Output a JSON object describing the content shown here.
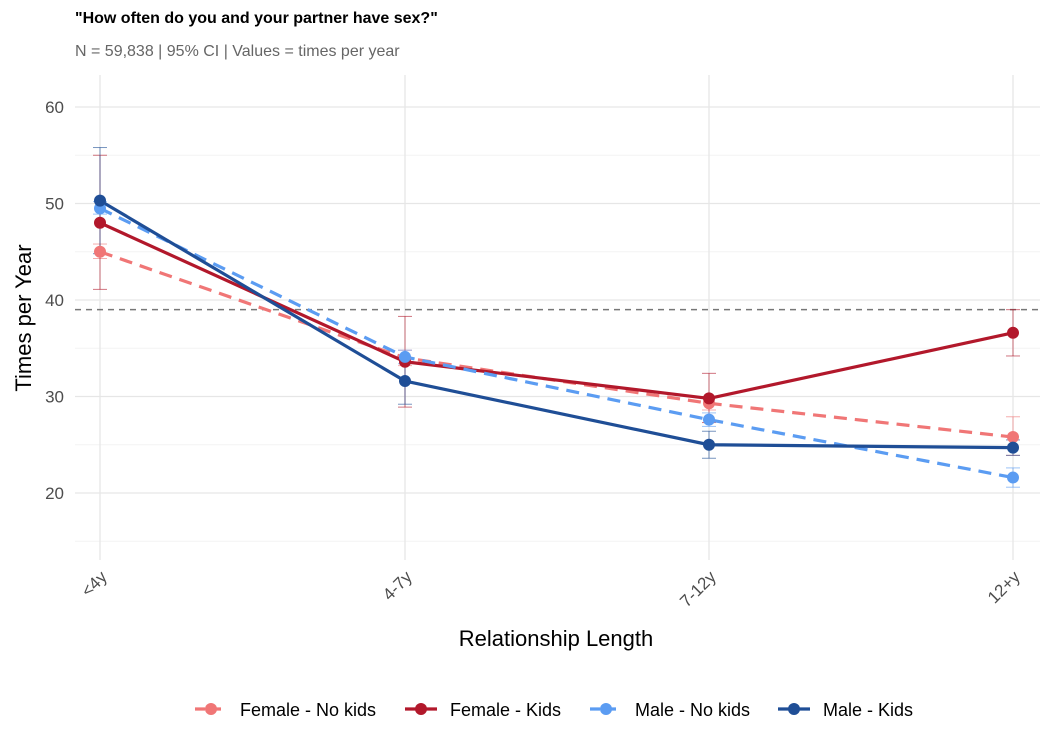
{
  "title": "\"How often do you and your partner have sex?\"",
  "subtitle": "N = 59,838 | 95% CI | Values = times per year",
  "chart_data": {
    "type": "line",
    "categories": [
      "<4y",
      "4-7y",
      "7-12y",
      "12+y"
    ],
    "xlabel": "Relationship Length",
    "ylabel": "Times per Year",
    "ylim": [
      13,
      63
    ],
    "yticks": [
      20,
      30,
      40,
      50,
      60
    ],
    "reference_line": 39,
    "grid": true,
    "legend_position": "bottom",
    "series": [
      {
        "name": "Female - No kids",
        "values": [
          45,
          34.0,
          29.3,
          25.8
        ],
        "ci_low": [
          44.3,
          33.2,
          28.6,
          23.9
        ],
        "ci_high": [
          45.8,
          34.8,
          30.0,
          27.9
        ],
        "color": "#F07676",
        "dash": true
      },
      {
        "name": "Female - Kids",
        "values": [
          48,
          33.6,
          29.8,
          36.6
        ],
        "ci_low": [
          41.1,
          28.9,
          27.3,
          34.2
        ],
        "ci_high": [
          55.0,
          38.3,
          32.4,
          39.0
        ],
        "color": "#B2182B",
        "dash": false
      },
      {
        "name": "Male - No kids",
        "values": [
          49.5,
          34.1,
          27.6,
          21.6
        ],
        "ci_low": [
          48.9,
          33.4,
          26.9,
          20.6
        ],
        "ci_high": [
          50.2,
          34.8,
          28.3,
          22.6
        ],
        "color": "#5B9CF2",
        "dash": true
      },
      {
        "name": "Male - Kids",
        "values": [
          50.3,
          31.6,
          25.0,
          24.7
        ],
        "ci_low": [
          44.8,
          29.2,
          23.6,
          23.9
        ],
        "ci_high": [
          55.8,
          34.0,
          26.4,
          25.5
        ],
        "color": "#1F4E96",
        "dash": false
      }
    ]
  }
}
